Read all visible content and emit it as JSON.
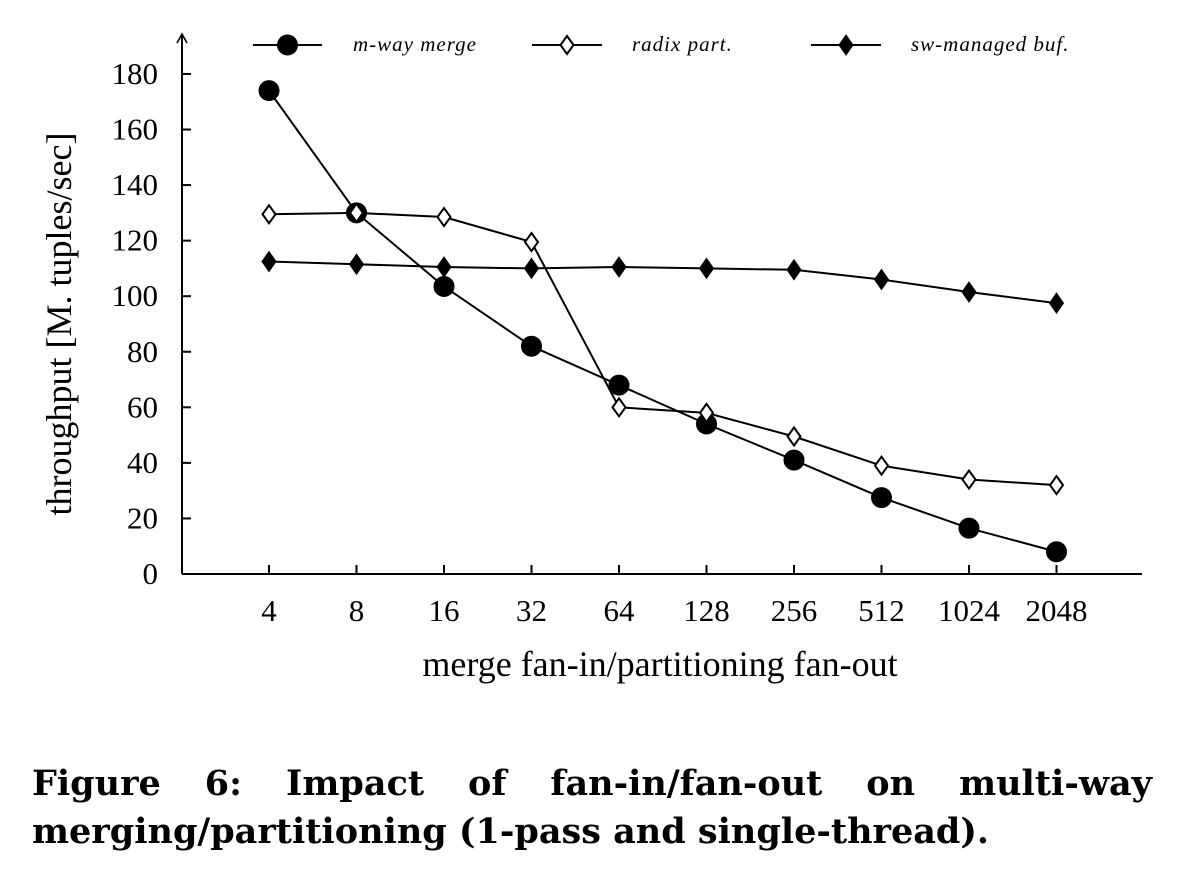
{
  "chart_data": {
    "type": "line",
    "categories": [
      "4",
      "8",
      "16",
      "32",
      "64",
      "128",
      "256",
      "512",
      "1024",
      "2048"
    ],
    "xlabel": "merge fan-in/partitioning fan-out",
    "ylabel": "throughput [M. tuples/sec]",
    "ylim": [
      0,
      190
    ],
    "yticks": [
      0,
      20,
      40,
      60,
      80,
      100,
      120,
      140,
      160,
      180
    ],
    "grid": false,
    "legend_position": "top",
    "series": [
      {
        "name": "m-way merge",
        "marker": "filled-circle",
        "values": [
          174,
          130,
          103.5,
          82,
          68,
          54,
          41,
          27.5,
          16.5,
          8
        ]
      },
      {
        "name": "radix part.",
        "marker": "hollow-diamond",
        "values": [
          129.5,
          130,
          128.5,
          119.5,
          60,
          58,
          49.5,
          39,
          34,
          32
        ]
      },
      {
        "name": "sw-managed buf.",
        "marker": "filled-diamond",
        "values": [
          112.5,
          111.5,
          110.5,
          110,
          110.5,
          110,
          109.5,
          106,
          101.5,
          97.5
        ]
      }
    ]
  },
  "caption": {
    "text": "Figure 6:  Impact of fan-in/fan-out on multi-way merging/partitioning (1-pass and single-thread)."
  }
}
